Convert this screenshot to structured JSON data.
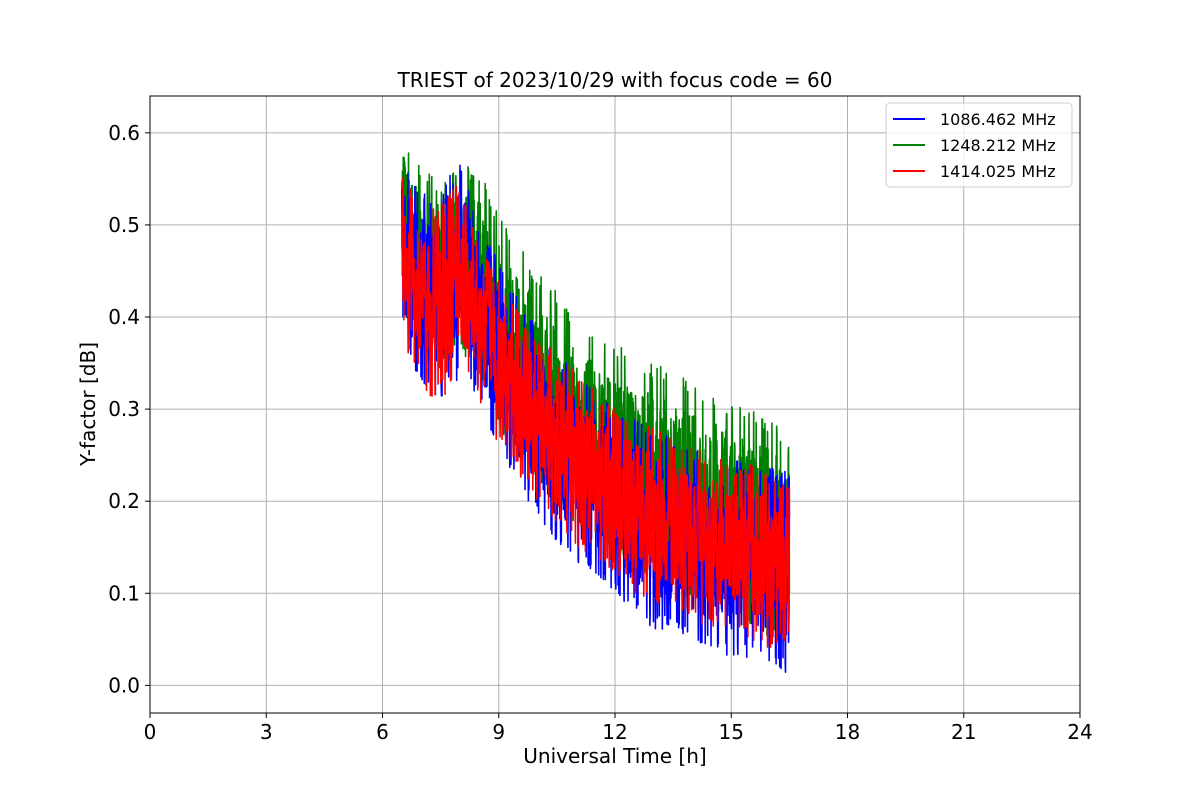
{
  "chart_data": {
    "type": "line",
    "title": "TRIEST of 2023/10/29 with focus code = 60",
    "xlabel": "Universal Time [h]",
    "ylabel": "Y-factor [dB]",
    "xlim": [
      0,
      24
    ],
    "ylim": [
      -0.03,
      0.64
    ],
    "xticks": [
      0,
      3,
      6,
      9,
      12,
      15,
      18,
      21,
      24
    ],
    "yticks": [
      0.0,
      0.1,
      0.2,
      0.3,
      0.4,
      0.5,
      0.6
    ],
    "ytick_labels": [
      "0.0",
      "0.1",
      "0.2",
      "0.3",
      "0.4",
      "0.5",
      "0.6"
    ],
    "grid": true,
    "legend_position": "top-right",
    "series": [
      {
        "name": "1086.462 MHz",
        "color": "#0000ff",
        "x": [
          6.5,
          7.0,
          7.5,
          8.0,
          8.5,
          9.0,
          9.5,
          10.0,
          10.5,
          11.0,
          11.5,
          12.0,
          12.5,
          13.0,
          13.5,
          14.0,
          14.5,
          15.0,
          15.5,
          16.0,
          16.5
        ],
        "low": [
          0.37,
          0.33,
          0.31,
          0.33,
          0.31,
          0.25,
          0.22,
          0.18,
          0.15,
          0.13,
          0.12,
          0.1,
          0.08,
          0.06,
          0.06,
          0.05,
          0.04,
          0.03,
          0.03,
          0.02,
          0.01
        ],
        "high": [
          0.57,
          0.54,
          0.53,
          0.58,
          0.5,
          0.46,
          0.42,
          0.39,
          0.36,
          0.34,
          0.32,
          0.3,
          0.29,
          0.28,
          0.27,
          0.26,
          0.25,
          0.25,
          0.24,
          0.24,
          0.24
        ]
      },
      {
        "name": "1248.212 MHz",
        "color": "#008000",
        "x": [
          6.5,
          7.0,
          7.5,
          8.0,
          8.5,
          9.0,
          9.5,
          10.0,
          10.5,
          11.0,
          11.5,
          12.0,
          12.5,
          13.0,
          13.5,
          14.0,
          14.5,
          15.0,
          15.5,
          16.0,
          16.5
        ],
        "low": [
          0.4,
          0.36,
          0.34,
          0.36,
          0.33,
          0.28,
          0.25,
          0.22,
          0.19,
          0.17,
          0.16,
          0.14,
          0.12,
          0.11,
          0.1,
          0.09,
          0.08,
          0.07,
          0.06,
          0.05,
          0.05
        ],
        "high": [
          0.61,
          0.56,
          0.55,
          0.57,
          0.56,
          0.51,
          0.48,
          0.45,
          0.43,
          0.4,
          0.38,
          0.37,
          0.36,
          0.35,
          0.34,
          0.33,
          0.32,
          0.31,
          0.3,
          0.29,
          0.27
        ]
      },
      {
        "name": "1414.025 MHz",
        "color": "#ff0000",
        "x": [
          6.5,
          7.0,
          7.5,
          8.0,
          8.5,
          9.0,
          9.5,
          10.0,
          10.5,
          11.0,
          11.5,
          12.0,
          12.5,
          13.0,
          13.5,
          14.0,
          14.5,
          15.0,
          15.5,
          16.0,
          16.5
        ],
        "low": [
          0.37,
          0.33,
          0.29,
          0.35,
          0.31,
          0.26,
          0.23,
          0.2,
          0.17,
          0.15,
          0.14,
          0.12,
          0.1,
          0.09,
          0.08,
          0.07,
          0.06,
          0.06,
          0.05,
          0.04,
          0.05
        ],
        "high": [
          0.56,
          0.52,
          0.52,
          0.55,
          0.48,
          0.44,
          0.41,
          0.38,
          0.36,
          0.34,
          0.32,
          0.3,
          0.29,
          0.28,
          0.27,
          0.26,
          0.25,
          0.24,
          0.24,
          0.23,
          0.22
        ]
      }
    ]
  }
}
